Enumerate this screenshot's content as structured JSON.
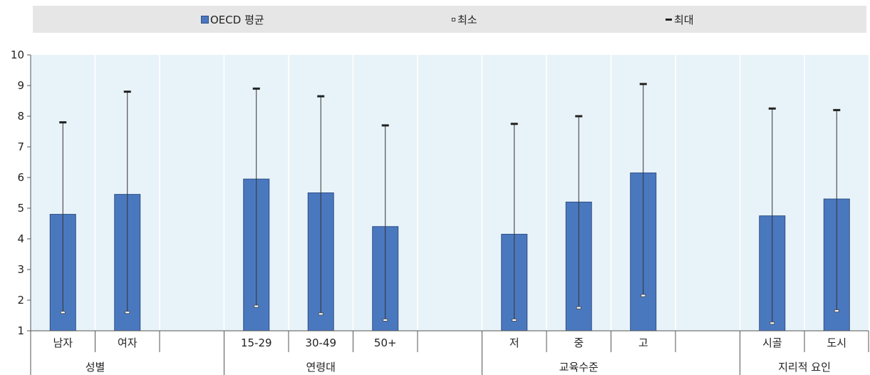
{
  "chart_data": {
    "type": "bar",
    "legend": {
      "bar_label": "OECD 평균",
      "min_label": "최소",
      "max_label": "최대",
      "placement": "top"
    },
    "ylim": [
      1,
      10
    ],
    "yticks": [
      1,
      2,
      3,
      4,
      5,
      6,
      7,
      8,
      9,
      10
    ],
    "grid": false,
    "colors": {
      "bar": "#4a78bf",
      "bar_border": "#2e4f86",
      "plot_bg": "#e8f3f9",
      "whisker": "#222222"
    },
    "groups": [
      {
        "name": "성별",
        "categories": [
          {
            "label": "남자",
            "mean": 4.8,
            "min": 1.6,
            "max": 7.8
          },
          {
            "label": "여자",
            "mean": 5.45,
            "min": 1.6,
            "max": 8.8
          }
        ]
      },
      {
        "name": "연령대",
        "categories": [
          {
            "label": "15-29",
            "mean": 5.95,
            "min": 1.8,
            "max": 8.9
          },
          {
            "label": "30-49",
            "mean": 5.5,
            "min": 1.55,
            "max": 8.65
          },
          {
            "label": "50+",
            "mean": 4.4,
            "min": 1.35,
            "max": 7.7
          }
        ]
      },
      {
        "name": "교육수준",
        "categories": [
          {
            "label": "저",
            "mean": 4.15,
            "min": 1.35,
            "max": 7.75
          },
          {
            "label": "중",
            "mean": 5.2,
            "min": 1.75,
            "max": 8.0
          },
          {
            "label": "고",
            "mean": 6.15,
            "min": 2.15,
            "max": 9.05
          }
        ]
      },
      {
        "name": "지리적 요인",
        "categories": [
          {
            "label": "시골",
            "mean": 4.75,
            "min": 1.25,
            "max": 8.25
          },
          {
            "label": "도시",
            "mean": 5.3,
            "min": 1.65,
            "max": 8.2
          }
        ]
      }
    ]
  }
}
